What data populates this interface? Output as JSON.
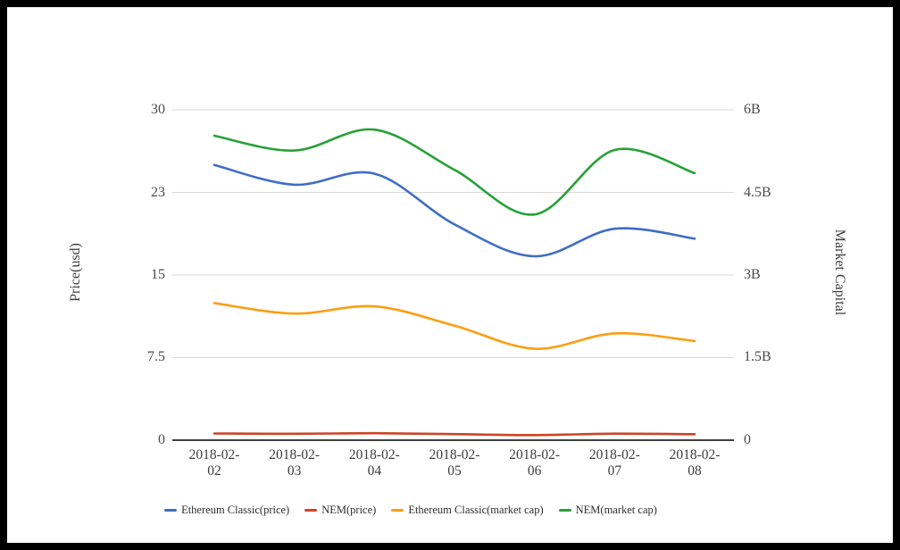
{
  "chart_data": {
    "type": "line",
    "title": "",
    "categories": [
      "2018-02-02",
      "2018-02-03",
      "2018-02-04",
      "2018-02-05",
      "2018-02-06",
      "2018-02-07",
      "2018-02-08"
    ],
    "series": [
      {
        "name": "Ethereum Classic(price)",
        "axis": "left",
        "color": "#3F6DC6",
        "values": [
          25.0,
          23.2,
          24.2,
          19.6,
          16.7,
          19.2,
          18.3
        ]
      },
      {
        "name": "NEM(price)",
        "axis": "left",
        "color": "#CC4527",
        "values": [
          0.61,
          0.58,
          0.63,
          0.55,
          0.46,
          0.59,
          0.54
        ]
      },
      {
        "name": "Ethereum Classic(market cap)",
        "axis": "right",
        "color": "#FC9E12",
        "values": [
          2.49,
          2.3,
          2.43,
          2.08,
          1.66,
          1.94,
          1.8
        ]
      },
      {
        "name": "NEM(market cap)",
        "axis": "right",
        "color": "#27A138",
        "values": [
          5.53,
          5.26,
          5.64,
          4.91,
          4.1,
          5.27,
          4.85
        ]
      }
    ],
    "left_axis": {
      "label": "Price(usd)",
      "tick_labels": [
        "0",
        "7.5",
        "15",
        "23",
        "30"
      ],
      "range": [
        0,
        30
      ]
    },
    "right_axis": {
      "label": "Market Capital",
      "tick_labels": [
        "0",
        "1.5B",
        "3B",
        "4.5B",
        "6B"
      ],
      "range": [
        0,
        6
      ]
    },
    "grid": true,
    "legend_position": "bottom"
  },
  "colors": {
    "grid": "#d9d9d9",
    "axis_line": "#3f3f3f",
    "tick_text": "#4a4a4a",
    "frame": "#000000"
  }
}
